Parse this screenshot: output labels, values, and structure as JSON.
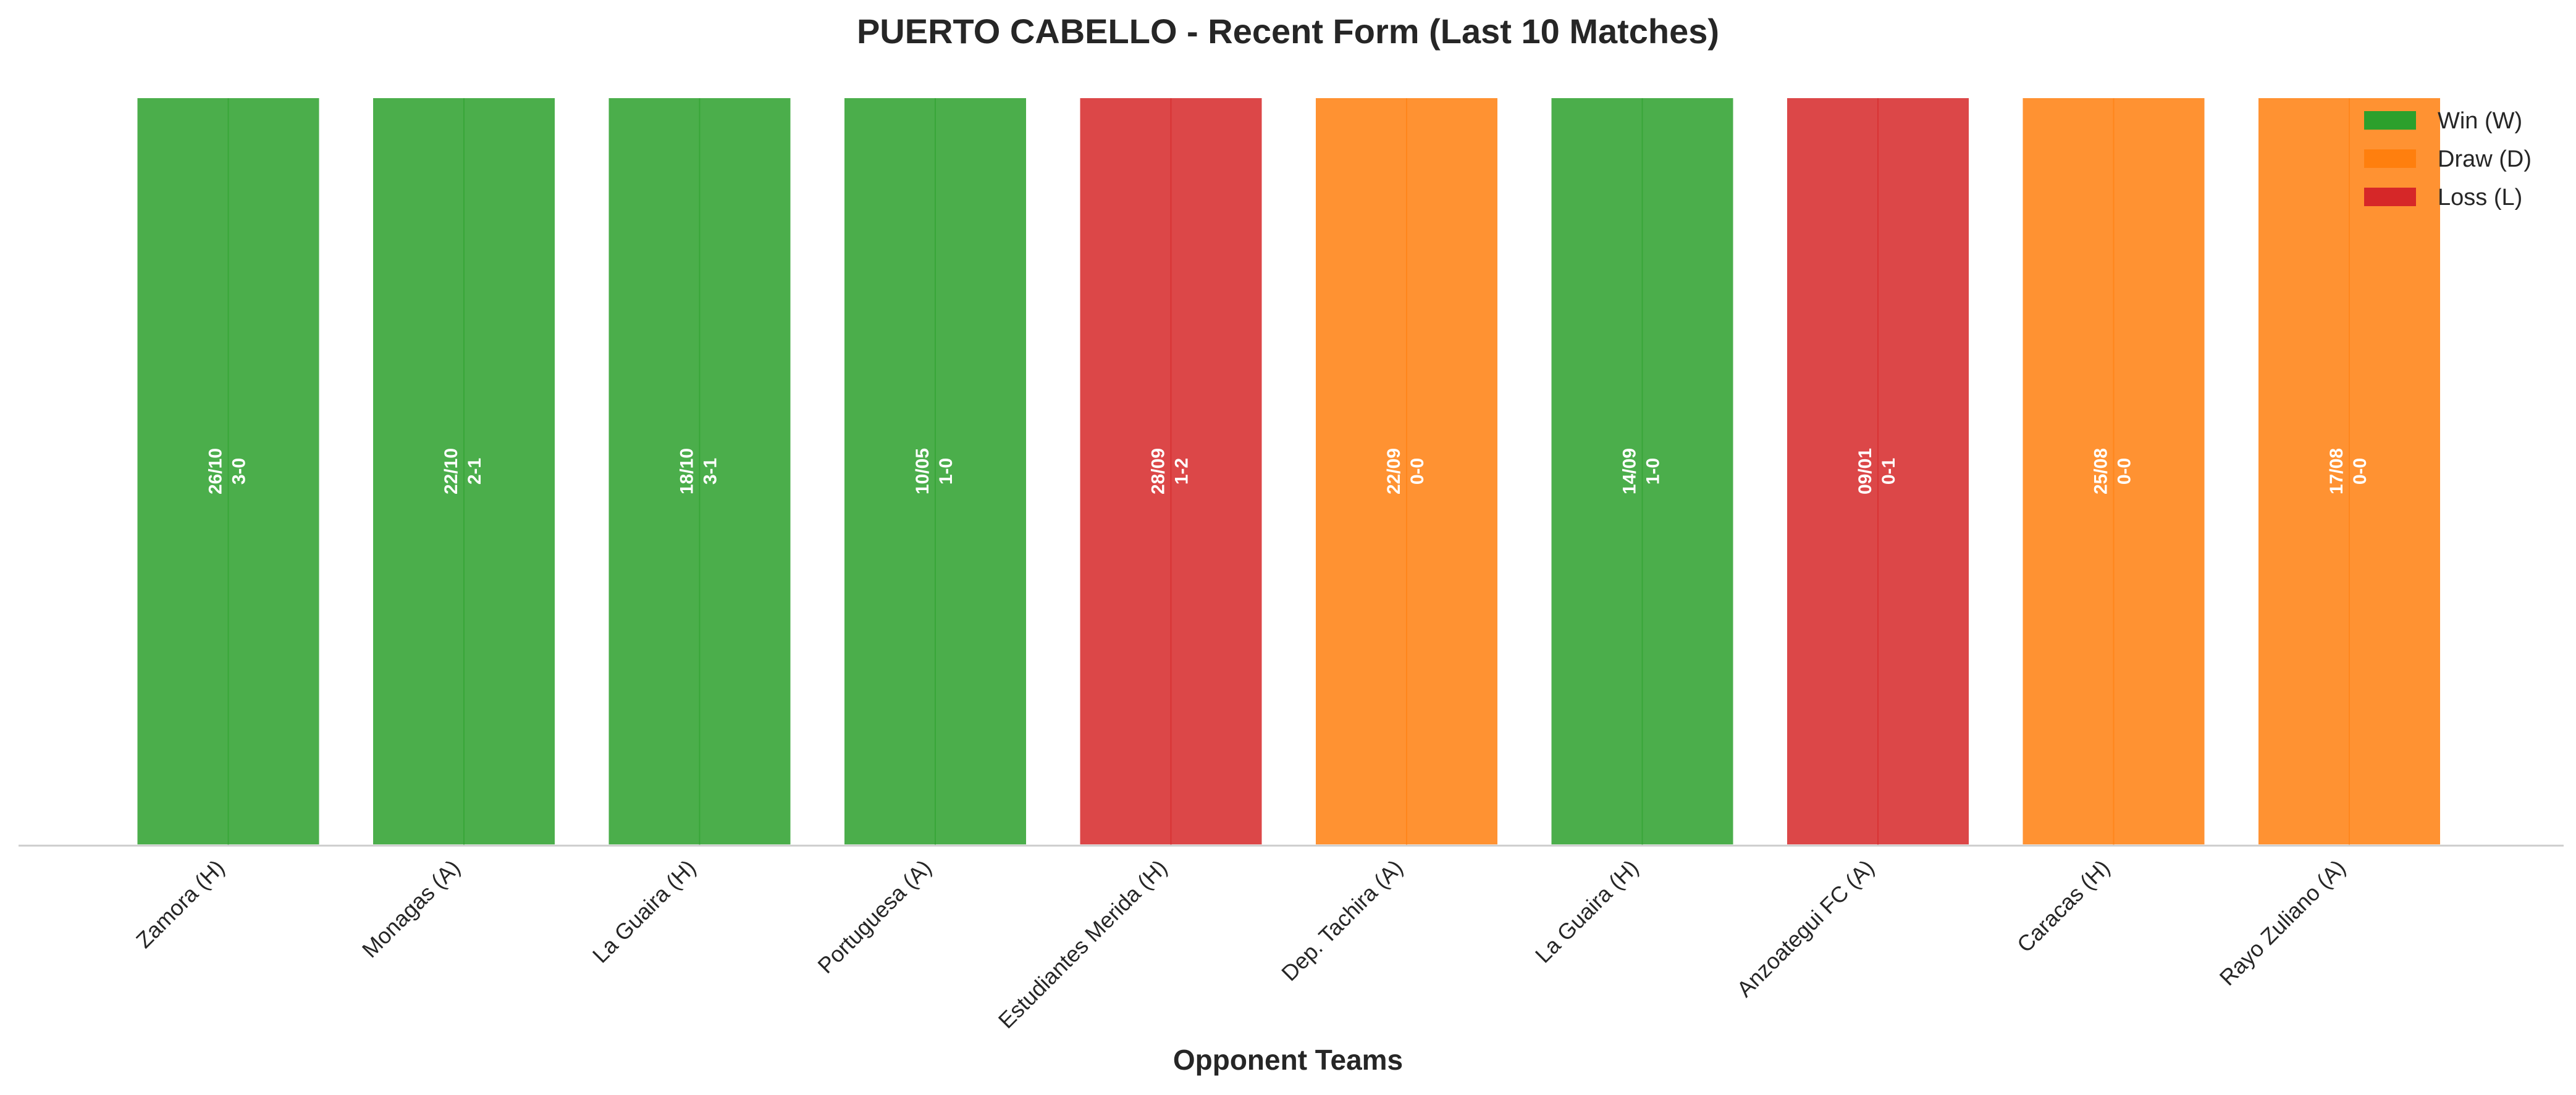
{
  "chart_data": {
    "type": "bar",
    "title": "PUERTO CABELLO - Recent Form (Last 10 Matches)",
    "xlabel": "Opponent Teams",
    "ylabel": "",
    "ylim": [
      0,
      1
    ],
    "grid": false,
    "legend_position": "top-right",
    "categories": [
      "Zamora (H)",
      "Monagas (A)",
      "La Guaira (H)",
      "Portuguesa (A)",
      "Estudiantes Merida (H)",
      "Dep. Tachira (A)",
      "La Guaira (H)",
      "Anzoategui FC (A)",
      "Caracas (H)",
      "Rayo Zuliano (A)"
    ],
    "values": [
      1,
      1,
      1,
      1,
      1,
      1,
      1,
      1,
      1,
      1
    ],
    "results": [
      "W",
      "W",
      "W",
      "W",
      "L",
      "D",
      "W",
      "L",
      "D",
      "D"
    ],
    "dates": [
      "26/10",
      "22/10",
      "18/10",
      "10/05",
      "28/09",
      "22/09",
      "14/09",
      "09/01",
      "25/08",
      "17/08"
    ],
    "scores": [
      "3-0",
      "2-1",
      "3-1",
      "1-0",
      "1-2",
      "0-0",
      "1-0",
      "0-1",
      "0-0",
      "0-0"
    ],
    "legend": [
      {
        "key": "W",
        "label": "Win (W)",
        "color": "#2ca02c"
      },
      {
        "key": "D",
        "label": "Draw (D)",
        "color": "#ff7f0e"
      },
      {
        "key": "L",
        "label": "Loss (L)",
        "color": "#d62728"
      }
    ]
  }
}
